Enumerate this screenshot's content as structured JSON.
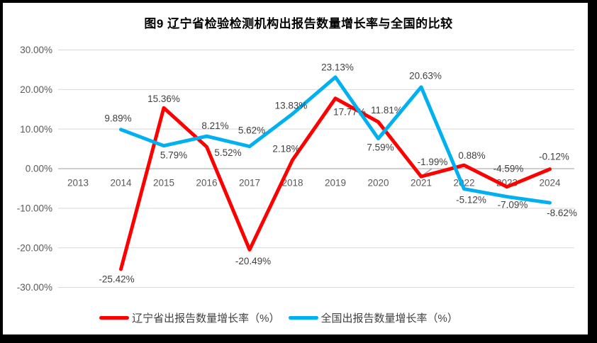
{
  "chart_data": {
    "type": "line",
    "title": "图9  辽宁省检验检测机构出报告数量增长率与全国的比较",
    "categories": [
      "2013",
      "2014",
      "2015",
      "2016",
      "2017",
      "2018",
      "2019",
      "2020",
      "2021",
      "2022",
      "2023",
      "2024"
    ],
    "series": [
      {
        "name": "辽宁省出报告数量增长率（%）",
        "color": "#FF0000",
        "values": [
          null,
          -25.42,
          15.36,
          5.52,
          -20.49,
          2.18,
          17.77,
          11.81,
          -1.99,
          0.88,
          -4.59,
          -0.12
        ]
      },
      {
        "name": "全国出报告数量增长率（%）",
        "color": "#00B0F0",
        "values": [
          null,
          9.89,
          5.79,
          8.21,
          5.62,
          13.83,
          23.13,
          7.59,
          20.63,
          -5.12,
          -7.09,
          -8.62
        ]
      }
    ],
    "yticks": [
      30,
      20,
      10,
      0,
      -10,
      -20,
      -30
    ],
    "ylim": [
      -30,
      30
    ],
    "y_tick_format": "percent_2dp",
    "xlabel": "",
    "ylabel": "",
    "grid": true,
    "legend_position": "bottom"
  },
  "colors": {
    "grid": "#D9D9D9",
    "zero_axis": "#BFBFBF",
    "tick_text": "#595959",
    "label_text": "#404040",
    "leader_line": "#A6A6A6",
    "frame": "#000000",
    "background": "#FFFFFF"
  }
}
